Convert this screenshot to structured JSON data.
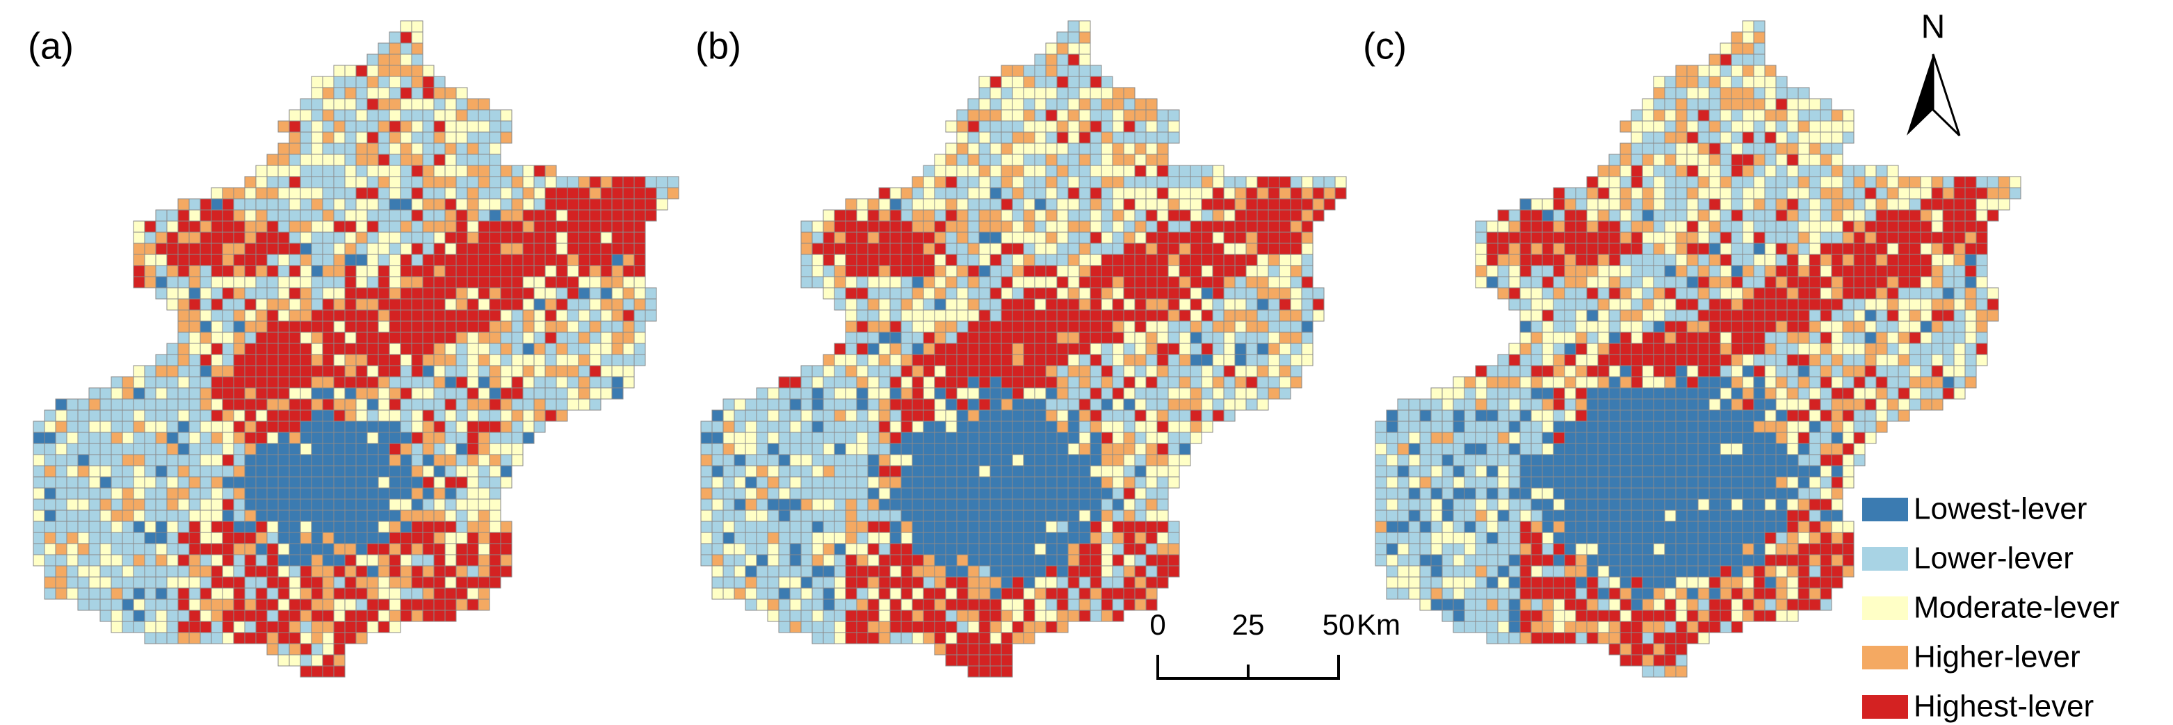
{
  "panels": [
    {
      "label": "(a)"
    },
    {
      "label": "(b)"
    },
    {
      "label": "(c)"
    }
  ],
  "north_arrow": {
    "label": "N"
  },
  "legend": {
    "items": [
      {
        "label": "Lowest-lever",
        "color": "#3b7bb1"
      },
      {
        "label": "Lower-lever",
        "color": "#a8d3e4"
      },
      {
        "label": "Moderate-lever",
        "color": "#ffffc6"
      },
      {
        "label": "Higher-lever",
        "color": "#f4a962"
      },
      {
        "label": "Highest-lever",
        "color": "#d42222"
      }
    ]
  },
  "scale_bar": {
    "ticks": [
      0,
      25,
      50
    ],
    "unit": "Km"
  }
}
